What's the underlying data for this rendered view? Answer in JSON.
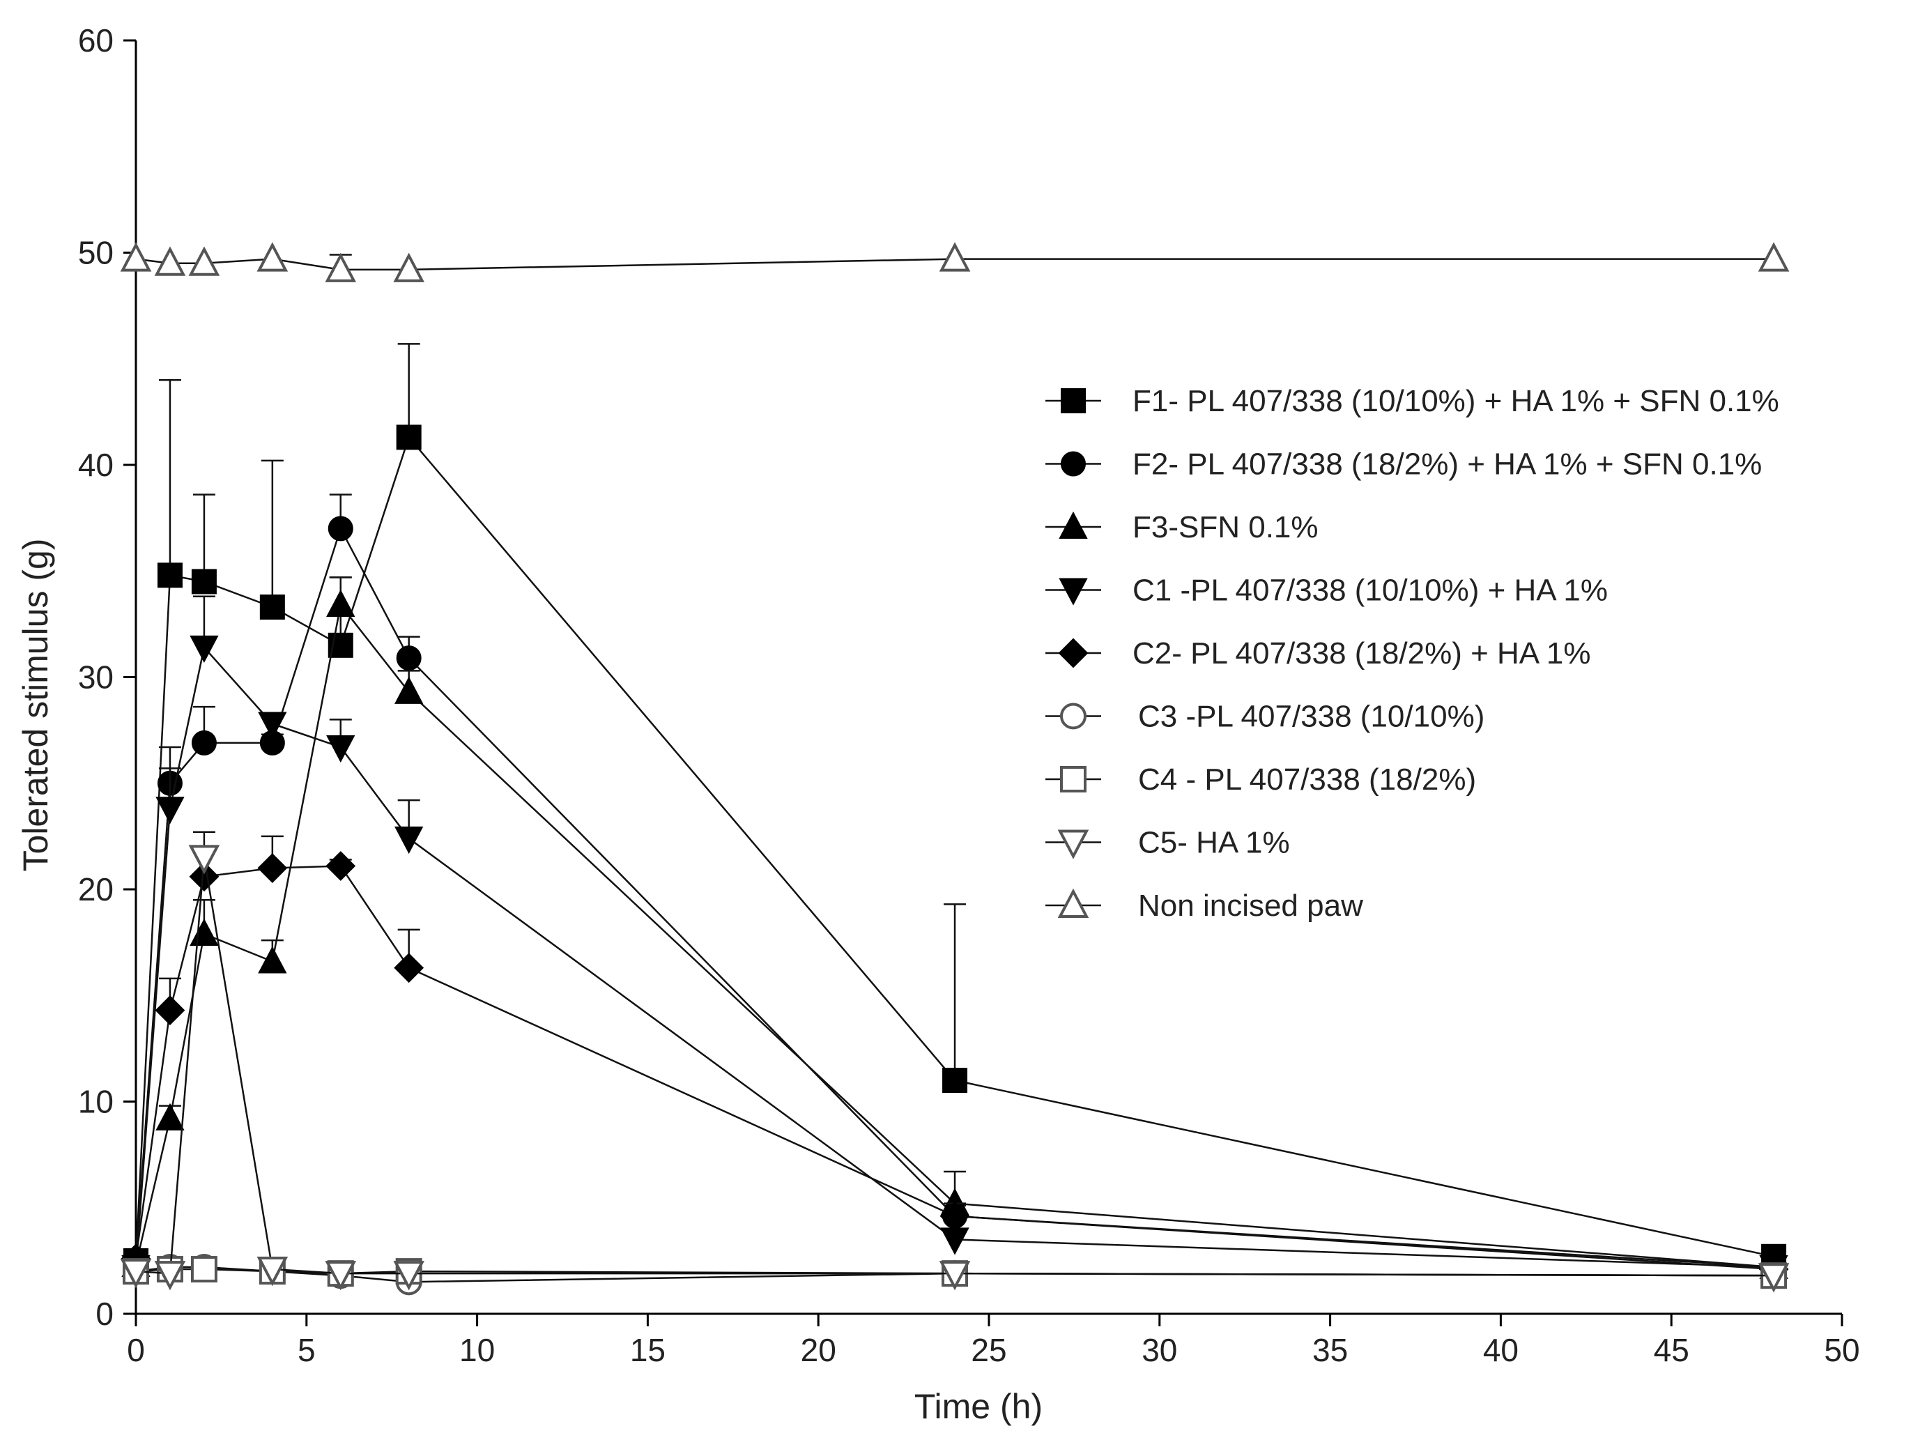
{
  "chart_data": {
    "type": "line",
    "title": "",
    "xlabel": "Time (h)",
    "ylabel": "Tolerated stimulus (g)",
    "xlim": [
      0,
      50
    ],
    "ylim": [
      0,
      60
    ],
    "x_ticks": [
      0,
      5,
      10,
      15,
      20,
      25,
      30,
      35,
      40,
      45,
      50
    ],
    "y_ticks": [
      0,
      10,
      20,
      30,
      40,
      50,
      60
    ],
    "x_tick_labels": [
      "0",
      "5",
      "10",
      "15",
      "20",
      "25",
      "30",
      "35",
      "40",
      "45",
      "50"
    ],
    "y_tick_labels": [
      "0",
      "10",
      "20",
      "30",
      "40",
      "50",
      "60"
    ],
    "grid": false,
    "legend_position": "right",
    "series": [
      {
        "name": "F1- PL 407/338 (10/10%) + HA 1% + SFN 0.1%",
        "marker": "square-filled",
        "x": [
          0,
          1,
          2,
          4,
          6,
          8,
          24,
          48
        ],
        "y": [
          2.5,
          34.8,
          34.5,
          33.3,
          31.5,
          41.3,
          11.0,
          2.7
        ],
        "error": [
          0,
          9.2,
          4.1,
          6.9,
          3.2,
          4.4,
          8.3,
          0.3
        ]
      },
      {
        "name": "F2- PL 407/338 (18/2%) + HA 1% + SFN 0.1%",
        "marker": "circle-filled",
        "x": [
          0,
          1,
          2,
          4,
          6,
          8,
          24,
          48
        ],
        "y": [
          2.5,
          25.0,
          26.9,
          26.9,
          37.0,
          30.9,
          4.6,
          2.2
        ],
        "error": [
          0,
          1.7,
          1.7,
          0.4,
          1.6,
          1.0,
          0.5,
          0.2
        ]
      },
      {
        "name": "F3-SFN 0.1%",
        "marker": "triangle-up-filled",
        "x": [
          0,
          1,
          2,
          4,
          6,
          8,
          24,
          48
        ],
        "y": [
          2.3,
          9.2,
          17.9,
          16.6,
          33.4,
          29.3,
          5.2,
          2.2
        ],
        "error": [
          0,
          0.6,
          1.6,
          1.0,
          1.3,
          1.0,
          1.5,
          0.2
        ]
      },
      {
        "name": "C1 -PL 407/338 (10/10%) + HA 1%",
        "marker": "triangle-down-filled",
        "x": [
          0,
          1,
          2,
          4,
          6,
          8,
          24,
          48
        ],
        "y": [
          2.2,
          23.8,
          31.4,
          27.8,
          26.7,
          22.4,
          3.5,
          2.2
        ],
        "error": [
          0,
          1.9,
          2.4,
          0.3,
          1.3,
          1.8,
          0.4,
          0.2
        ]
      },
      {
        "name": "C2- PL 407/338 (18/2%) + HA 1%",
        "marker": "diamond-filled",
        "x": [
          0,
          1,
          2,
          4,
          6,
          8,
          24,
          48
        ],
        "y": [
          2.6,
          14.3,
          20.6,
          21.0,
          21.1,
          16.3,
          4.6,
          2.1
        ],
        "error": [
          0,
          1.5,
          1.3,
          1.5,
          0.3,
          1.8,
          0.6,
          0.2
        ]
      },
      {
        "name": "C3 -PL 407/338 (10/10%)",
        "marker": "circle-open",
        "x": [
          0,
          1,
          2,
          4,
          6,
          8,
          24,
          48
        ],
        "y": [
          2.0,
          2.2,
          2.2,
          2.0,
          1.8,
          1.5,
          1.9,
          1.8
        ],
        "error": [
          0,
          0.1,
          0.1,
          0.1,
          0.1,
          0.1,
          0.1,
          0.1
        ]
      },
      {
        "name": "C4 - PL 407/338 (18/2%)",
        "marker": "square-open",
        "x": [
          0,
          1,
          2,
          4,
          6,
          8,
          24,
          48
        ],
        "y": [
          2.0,
          2.1,
          2.1,
          2.0,
          1.9,
          2.0,
          1.9,
          1.8
        ],
        "error": [
          0,
          0.1,
          0.1,
          0.1,
          0.1,
          0.1,
          0.1,
          0.1
        ]
      },
      {
        "name": "C5- HA 1%",
        "marker": "triangle-down-open",
        "x": [
          0,
          1,
          2,
          4,
          6,
          8,
          24,
          48
        ],
        "y": [
          2.0,
          1.9,
          21.5,
          2.1,
          1.9,
          1.9,
          1.9,
          1.8
        ],
        "error": [
          0,
          0.1,
          1.2,
          0.1,
          0.1,
          0.1,
          0.1,
          0.1
        ]
      },
      {
        "name": "Non incised paw",
        "marker": "triangle-up-open",
        "x": [
          0,
          1,
          2,
          4,
          6,
          8,
          24,
          48
        ],
        "y": [
          49.7,
          49.5,
          49.5,
          49.7,
          49.2,
          49.2,
          49.7,
          49.7
        ],
        "error": [
          0,
          0.1,
          0.1,
          0.1,
          0.7,
          0.1,
          0.1,
          0.1
        ]
      }
    ]
  }
}
